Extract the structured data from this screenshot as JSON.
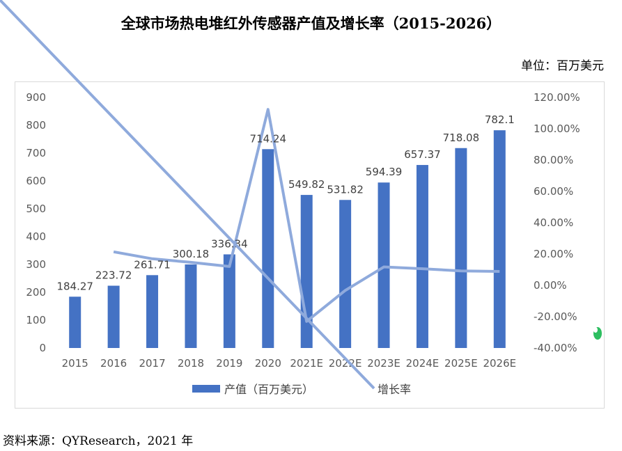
{
  "title": "全球市场热电堆红外传感器产值及增长率（2015-2026）",
  "unit": "单位：百万美元",
  "source": "资料来源：QYResearch，2021 年",
  "chart_data": {
    "type": "bar",
    "categories": [
      "2015",
      "2016",
      "2017",
      "2018",
      "2019",
      "2020",
      "2021E",
      "2022E",
      "2023E",
      "2024E",
      "2025E",
      "2026E"
    ],
    "series": [
      {
        "name": "产值（百万美元）",
        "type": "bar",
        "axis": "left",
        "color": "#4472c4",
        "values": [
          184.27,
          223.72,
          261.71,
          300.18,
          336.34,
          714.24,
          549.82,
          531.82,
          594.39,
          657.37,
          718.08,
          782.1
        ],
        "labels": [
          "184.27",
          "223.72",
          "261.71",
          "300.18",
          "336.34",
          "714.24",
          "549.82",
          "531.82",
          "594.39",
          "657.37",
          "718.08",
          "782.1"
        ]
      },
      {
        "name": "增长率",
        "type": "line",
        "axis": "right",
        "color": "#8faadc",
        "values": [
          null,
          21.41,
          16.98,
          14.7,
          12.05,
          112.35,
          -23.02,
          -3.27,
          11.76,
          10.6,
          9.23,
          8.91
        ]
      }
    ],
    "left_axis": {
      "ylim": [
        0,
        900
      ],
      "ticks": [
        "0",
        "100",
        "200",
        "300",
        "400",
        "500",
        "600",
        "700",
        "800",
        "900"
      ]
    },
    "right_axis": {
      "ylim": [
        -40,
        120
      ],
      "ticks": [
        "-40.00%",
        "-20.00%",
        "0.00%",
        "20.00%",
        "40.00%",
        "60.00%",
        "80.00%",
        "100.00%",
        "120.00%"
      ]
    },
    "grid": false,
    "legend_position": "bottom"
  }
}
